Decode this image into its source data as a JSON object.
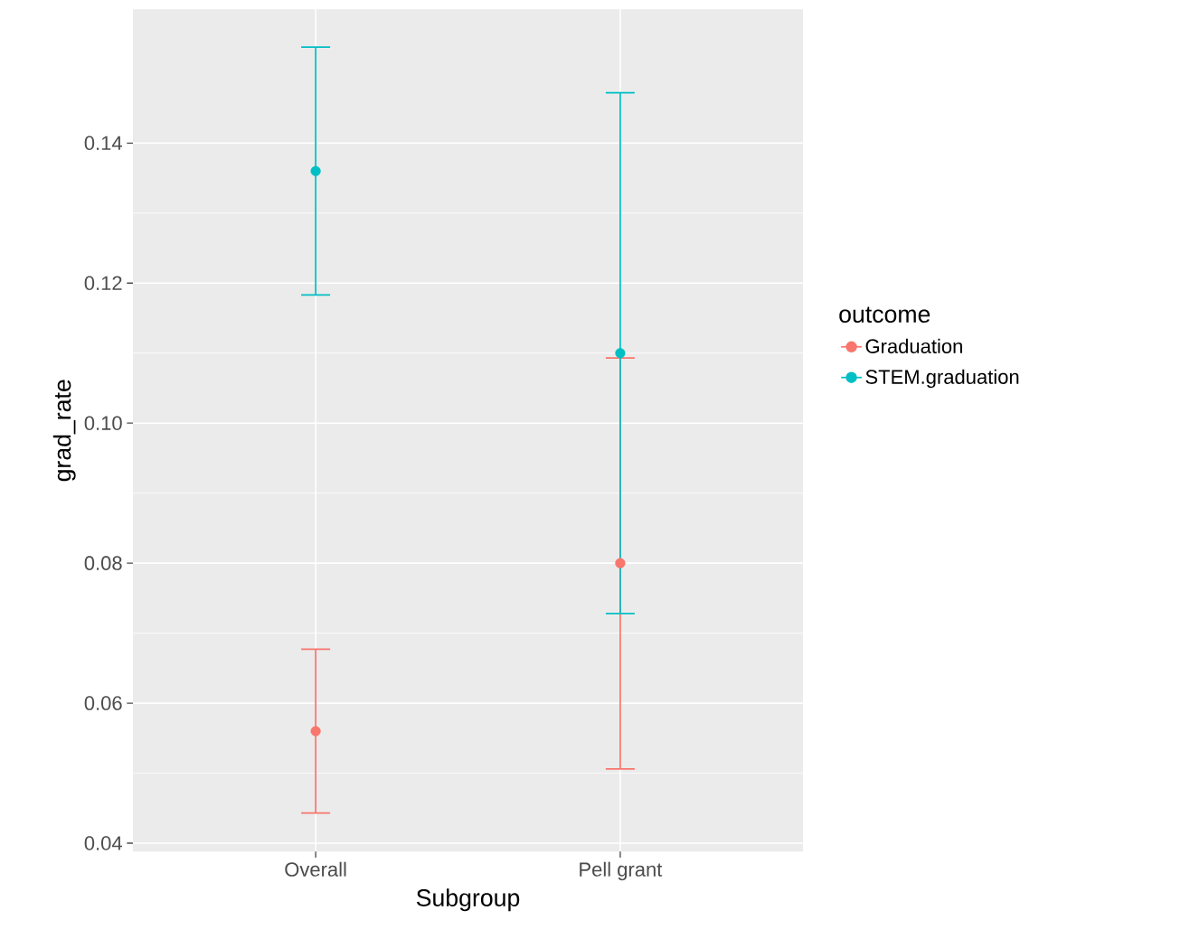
{
  "chart_data": {
    "type": "scatter",
    "xlabel": "Subgroup",
    "ylabel": "grad_rate",
    "legend_title": "outcome",
    "categories": [
      "Overall",
      "Pell grant"
    ],
    "series": [
      {
        "name": "Graduation",
        "color": "#f8766d",
        "values": [
          0.056,
          0.08
        ],
        "errors": [
          [
            0.0443,
            0.0677
          ],
          [
            0.0506,
            0.1093
          ]
        ]
      },
      {
        "name": "STEM.graduation",
        "color": "#00bfc4",
        "values": [
          0.136,
          0.11
        ],
        "errors": [
          [
            0.1183,
            0.1537
          ],
          [
            0.0728,
            0.1472
          ]
        ]
      }
    ],
    "ylim": [
      0.0388,
      0.1591
    ],
    "yticks": [
      0.04,
      0.06,
      0.08,
      {
        "value": 0.1,
        "label": "0.10"
      },
      0.12,
      0.14
    ],
    "grid": true,
    "legend": "right",
    "marker": "circle"
  }
}
